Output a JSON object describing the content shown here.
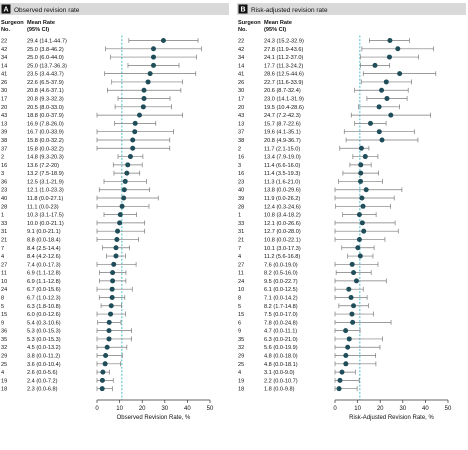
{
  "chart_data": [
    {
      "type": "scatter",
      "panel": "A",
      "title": "Observed revision rate",
      "column_headers": {
        "surgeon_line1": "Surgeon",
        "surgeon_line2": "No.",
        "rate_line1": "Mean Rate",
        "rate_line2": "(95% CI)"
      },
      "xlabel": "Observed Revision Rate, %",
      "xlim": [
        0,
        50
      ],
      "xticks": [
        0,
        10,
        20,
        30,
        40,
        50
      ],
      "reference_x": 11,
      "rows": [
        {
          "surgeon": "22",
          "label": "29.4 (14.1-44.7)",
          "mean": 29.4,
          "lo": 14.1,
          "hi": 44.7
        },
        {
          "surgeon": "42",
          "label": "25.0 (3.8-46.2)",
          "mean": 25.0,
          "lo": 3.8,
          "hi": 46.2
        },
        {
          "surgeon": "34",
          "label": "25.0 (6.0-44.0)",
          "mean": 25.0,
          "lo": 6.0,
          "hi": 44.0
        },
        {
          "surgeon": "14",
          "label": "25.0 (13.7-36.3)",
          "mean": 25.0,
          "lo": 13.7,
          "hi": 36.3
        },
        {
          "surgeon": "41",
          "label": "23.5 (3.4-43.7)",
          "mean": 23.5,
          "lo": 3.4,
          "hi": 43.7
        },
        {
          "surgeon": "26",
          "label": "22.6 (6.5-37.9)",
          "mean": 22.6,
          "lo": 6.5,
          "hi": 37.9
        },
        {
          "surgeon": "30",
          "label": "20.8 (4.6-37.1)",
          "mean": 20.8,
          "lo": 4.6,
          "hi": 37.1
        },
        {
          "surgeon": "17",
          "label": "20.8 (9.3-32.3)",
          "mean": 20.8,
          "lo": 9.3,
          "hi": 32.3
        },
        {
          "surgeon": "20",
          "label": "20.5 (8.0-33.0)",
          "mean": 20.5,
          "lo": 8.0,
          "hi": 33.0
        },
        {
          "surgeon": "43",
          "label": "18.8 (0.0-37.9)",
          "mean": 18.8,
          "lo": 0.0,
          "hi": 37.9
        },
        {
          "surgeon": "13",
          "label": "16.9 (7.8-26.0)",
          "mean": 16.9,
          "lo": 7.8,
          "hi": 26.0
        },
        {
          "surgeon": "39",
          "label": "16.7 (0.0-33.9)",
          "mean": 16.7,
          "lo": 0.0,
          "hi": 33.9
        },
        {
          "surgeon": "38",
          "label": "15.8 (0.0-32.2)",
          "mean": 15.8,
          "lo": 0.0,
          "hi": 32.2
        },
        {
          "surgeon": "37",
          "label": "15.8 (0.0-32.2)",
          "mean": 15.8,
          "lo": 0.0,
          "hi": 32.2
        },
        {
          "surgeon": "2",
          "label": "14.8 (9.3-20.3)",
          "mean": 14.8,
          "lo": 9.3,
          "hi": 20.3
        },
        {
          "surgeon": "16",
          "label": "13.6 (7.2-20)",
          "mean": 13.6,
          "lo": 7.2,
          "hi": 20.0
        },
        {
          "surgeon": "3",
          "label": "13.2 (7.5-18.9)",
          "mean": 13.2,
          "lo": 7.5,
          "hi": 18.9
        },
        {
          "surgeon": "36",
          "label": "12.5 (3.1-21.9)",
          "mean": 12.5,
          "lo": 3.1,
          "hi": 21.9
        },
        {
          "surgeon": "23",
          "label": "12.1 (1.0-23.3)",
          "mean": 12.1,
          "lo": 1.0,
          "hi": 23.3
        },
        {
          "surgeon": "40",
          "label": "11.8 (0.0-27.1)",
          "mean": 11.8,
          "lo": 0.0,
          "hi": 27.1
        },
        {
          "surgeon": "28",
          "label": "11.1 (0.0-23)",
          "mean": 11.1,
          "lo": 0.0,
          "hi": 23.0
        },
        {
          "surgeon": "1",
          "label": "10.3 (3.1-17.5)",
          "mean": 10.3,
          "lo": 3.1,
          "hi": 17.5
        },
        {
          "surgeon": "33",
          "label": "10.0 (0.0-21.1)",
          "mean": 10.0,
          "lo": 0.0,
          "hi": 21.1
        },
        {
          "surgeon": "31",
          "label": "9.1 (0.0-21.1)",
          "mean": 9.1,
          "lo": 0.0,
          "hi": 21.1
        },
        {
          "surgeon": "21",
          "label": "8.8 (0.0-18.4)",
          "mean": 8.8,
          "lo": 0.0,
          "hi": 18.4
        },
        {
          "surgeon": "7",
          "label": "8.4 (2.5-14.4)",
          "mean": 8.4,
          "lo": 2.5,
          "hi": 14.4
        },
        {
          "surgeon": "4",
          "label": "8.4 (4.2-12.6)",
          "mean": 8.4,
          "lo": 4.2,
          "hi": 12.6
        },
        {
          "surgeon": "27",
          "label": "7.4 (0.0-17.3)",
          "mean": 7.4,
          "lo": 0.0,
          "hi": 17.3
        },
        {
          "surgeon": "11",
          "label": "6.9 (1.1-12.8)",
          "mean": 6.9,
          "lo": 1.1,
          "hi": 12.8
        },
        {
          "surgeon": "10",
          "label": "6.9 (1.1-12.8)",
          "mean": 6.9,
          "lo": 1.1,
          "hi": 12.8
        },
        {
          "surgeon": "24",
          "label": "6.7 (0.0-15.6)",
          "mean": 6.7,
          "lo": 0.0,
          "hi": 15.6
        },
        {
          "surgeon": "8",
          "label": "6.7 (1.0-12.3)",
          "mean": 6.7,
          "lo": 1.0,
          "hi": 12.3
        },
        {
          "surgeon": "5",
          "label": "6.3 (1.8-10.8)",
          "mean": 6.3,
          "lo": 1.8,
          "hi": 10.8
        },
        {
          "surgeon": "15",
          "label": "6.0 (0.0-12.6)",
          "mean": 6.0,
          "lo": 0.0,
          "hi": 12.6
        },
        {
          "surgeon": "9",
          "label": "5.4 (0.3-10.6)",
          "mean": 5.4,
          "lo": 0.3,
          "hi": 10.6
        },
        {
          "surgeon": "36",
          "label": "5.3 (0.0-15.3)",
          "mean": 5.3,
          "lo": 0.0,
          "hi": 15.3
        },
        {
          "surgeon": "35",
          "label": "5.3 (0.0-15.3)",
          "mean": 5.3,
          "lo": 0.0,
          "hi": 15.3
        },
        {
          "surgeon": "32",
          "label": "4.5 (0.0-13.2)",
          "mean": 4.5,
          "lo": 0.0,
          "hi": 13.2
        },
        {
          "surgeon": "29",
          "label": "3.8 (0.0-11.2)",
          "mean": 3.8,
          "lo": 0.0,
          "hi": 11.2
        },
        {
          "surgeon": "25",
          "label": "3.6 (0.0-10.4)",
          "mean": 3.6,
          "lo": 0.0,
          "hi": 10.4
        },
        {
          "surgeon": "4",
          "label": "2.6 (0.0-5.6)",
          "mean": 2.6,
          "lo": 0.0,
          "hi": 5.6
        },
        {
          "surgeon": "19",
          "label": "2.4 (0.0-7.2)",
          "mean": 2.4,
          "lo": 0.0,
          "hi": 7.2
        },
        {
          "surgeon": "18",
          "label": "2.3 (0.0-6.8)",
          "mean": 2.3,
          "lo": 0.0,
          "hi": 6.8
        }
      ]
    },
    {
      "type": "scatter",
      "panel": "B",
      "title": "Risk-adjusted revision rate",
      "column_headers": {
        "surgeon_line1": "Surgeon",
        "surgeon_line2": "No.",
        "rate_line1": "Mean Rate",
        "rate_line2": "(95% CI)"
      },
      "xlabel": "Risk-Adjusted Revision Rate, %",
      "xlim": [
        0,
        50
      ],
      "xticks": [
        0,
        10,
        20,
        30,
        40,
        50
      ],
      "reference_x": 11,
      "rows": [
        {
          "surgeon": "22",
          "label": "24.3 (15.2-32.9)",
          "mean": 24.3,
          "lo": 15.2,
          "hi": 32.9
        },
        {
          "surgeon": "42",
          "label": "27.8 (11.9-43.6)",
          "mean": 27.8,
          "lo": 11.9,
          "hi": 43.6
        },
        {
          "surgeon": "34",
          "label": "24.1 (11.2-37.0)",
          "mean": 24.1,
          "lo": 11.2,
          "hi": 37.0
        },
        {
          "surgeon": "14",
          "label": "17.7 (11.3-24.2)",
          "mean": 17.7,
          "lo": 11.3,
          "hi": 24.2
        },
        {
          "surgeon": "41",
          "label": "28.6 (12.5-44.6)",
          "mean": 28.6,
          "lo": 12.5,
          "hi": 44.6
        },
        {
          "surgeon": "26",
          "label": "22.7 (11.6-33.9)",
          "mean": 22.7,
          "lo": 11.6,
          "hi": 33.9
        },
        {
          "surgeon": "30",
          "label": "20.6 (8.7-32.4)",
          "mean": 20.6,
          "lo": 8.7,
          "hi": 32.4
        },
        {
          "surgeon": "17",
          "label": "23.0 (14.1-31.9)",
          "mean": 23.0,
          "lo": 14.1,
          "hi": 31.9
        },
        {
          "surgeon": "20",
          "label": "19.5 (10.4-28.6)",
          "mean": 19.5,
          "lo": 10.4,
          "hi": 28.6
        },
        {
          "surgeon": "43",
          "label": "24.7 (7.2-42.3)",
          "mean": 24.7,
          "lo": 7.2,
          "hi": 42.3
        },
        {
          "surgeon": "13",
          "label": "15.7 (8.7-22.6)",
          "mean": 15.7,
          "lo": 8.7,
          "hi": 22.6
        },
        {
          "surgeon": "37",
          "label": "19.6 (4.1-35.1)",
          "mean": 19.6,
          "lo": 4.1,
          "hi": 35.1
        },
        {
          "surgeon": "38",
          "label": "20.8 (4.9-36.7)",
          "mean": 20.8,
          "lo": 4.9,
          "hi": 36.7
        },
        {
          "surgeon": "2",
          "label": "11.7 (2.1-15.0)",
          "mean": 11.7,
          "lo": 2.1,
          "hi": 15.0
        },
        {
          "surgeon": "16",
          "label": "13.4 (7.9-19.0)",
          "mean": 13.4,
          "lo": 7.9,
          "hi": 19.0
        },
        {
          "surgeon": "3",
          "label": "11.4 (6.6-16.0)",
          "mean": 11.4,
          "lo": 6.6,
          "hi": 16.0
        },
        {
          "surgeon": "16",
          "label": "11.4 (3.5-19.3)",
          "mean": 11.4,
          "lo": 3.5,
          "hi": 19.3
        },
        {
          "surgeon": "23",
          "label": "11.3 (1.6-21.0)",
          "mean": 11.3,
          "lo": 1.6,
          "hi": 21.0
        },
        {
          "surgeon": "40",
          "label": "13.8 (0.0-29.6)",
          "mean": 13.8,
          "lo": 0.0,
          "hi": 29.6
        },
        {
          "surgeon": "39",
          "label": "11.9 (0.0-26.2)",
          "mean": 11.9,
          "lo": 0.0,
          "hi": 26.2
        },
        {
          "surgeon": "28",
          "label": "12.4 (0.3-24.6)",
          "mean": 12.4,
          "lo": 0.3,
          "hi": 24.6
        },
        {
          "surgeon": "1",
          "label": "10.8 (3.4-18.2)",
          "mean": 10.8,
          "lo": 3.4,
          "hi": 18.2
        },
        {
          "surgeon": "33",
          "label": "12.1 (0.0-26.6)",
          "mean": 12.1,
          "lo": 0.0,
          "hi": 26.6
        },
        {
          "surgeon": "31",
          "label": "12.7 (0.0-28.0)",
          "mean": 12.7,
          "lo": 0.0,
          "hi": 28.0
        },
        {
          "surgeon": "21",
          "label": "10.8 (0.0-22.1)",
          "mean": 10.8,
          "lo": 0.0,
          "hi": 22.1
        },
        {
          "surgeon": "7",
          "label": "10.1 (3.0-17.3)",
          "mean": 10.1,
          "lo": 3.0,
          "hi": 17.3
        },
        {
          "surgeon": "4",
          "label": "11.2 (5.6-16.8)",
          "mean": 11.2,
          "lo": 5.6,
          "hi": 16.8
        },
        {
          "surgeon": "27",
          "label": "7.6 (0.0-19.0)",
          "mean": 7.6,
          "lo": 0.0,
          "hi": 19.0
        },
        {
          "surgeon": "11",
          "label": "8.2 (0.5-16.0)",
          "mean": 8.2,
          "lo": 0.5,
          "hi": 16.0
        },
        {
          "surgeon": "24",
          "label": "9.5 (0.0-22.7)",
          "mean": 9.5,
          "lo": 0.0,
          "hi": 22.7
        },
        {
          "surgeon": "10",
          "label": "6.1 (0.0-12.5)",
          "mean": 6.1,
          "lo": 0.0,
          "hi": 12.5
        },
        {
          "surgeon": "8",
          "label": "7.1 (0.0-14.2)",
          "mean": 7.1,
          "lo": 0.0,
          "hi": 14.2
        },
        {
          "surgeon": "5",
          "label": "8.2 (1.7-14.8)",
          "mean": 8.2,
          "lo": 1.7,
          "hi": 14.8
        },
        {
          "surgeon": "15",
          "label": "7.5 (0.0-17.0)",
          "mean": 7.5,
          "lo": 0.0,
          "hi": 17.0
        },
        {
          "surgeon": "6",
          "label": "7.8 (0.0-24.8)",
          "mean": 7.8,
          "lo": 0.0,
          "hi": 24.8
        },
        {
          "surgeon": "9",
          "label": "4.7 (0.0-11.1)",
          "mean": 4.7,
          "lo": 0.0,
          "hi": 11.1
        },
        {
          "surgeon": "35",
          "label": "6.3 (0.0-21.0)",
          "mean": 6.3,
          "lo": 0.0,
          "hi": 21.0
        },
        {
          "surgeon": "32",
          "label": "5.6 (0.0-19.9)",
          "mean": 5.6,
          "lo": 0.0,
          "hi": 19.9
        },
        {
          "surgeon": "29",
          "label": "4.8 (0.0-18.0)",
          "mean": 4.8,
          "lo": 0.0,
          "hi": 18.0
        },
        {
          "surgeon": "25",
          "label": "4.8 (0.0-18.1)",
          "mean": 4.8,
          "lo": 0.0,
          "hi": 18.1
        },
        {
          "surgeon": "4",
          "label": "3.1 (0.0-9.0)",
          "mean": 3.1,
          "lo": 0.0,
          "hi": 9.0
        },
        {
          "surgeon": "19",
          "label": "2.2 (0.0-10.7)",
          "mean": 2.2,
          "lo": 0.0,
          "hi": 10.7
        },
        {
          "surgeon": "18",
          "label": "1.8 (0.0-9.8)",
          "mean": 1.8,
          "lo": 0.0,
          "hi": 9.8
        }
      ]
    }
  ],
  "colors": {
    "point": "#1f4e5a",
    "ci": "#7a7a7a",
    "reference_line": "#3ab5c6",
    "header_band": "#d9d9d9"
  }
}
